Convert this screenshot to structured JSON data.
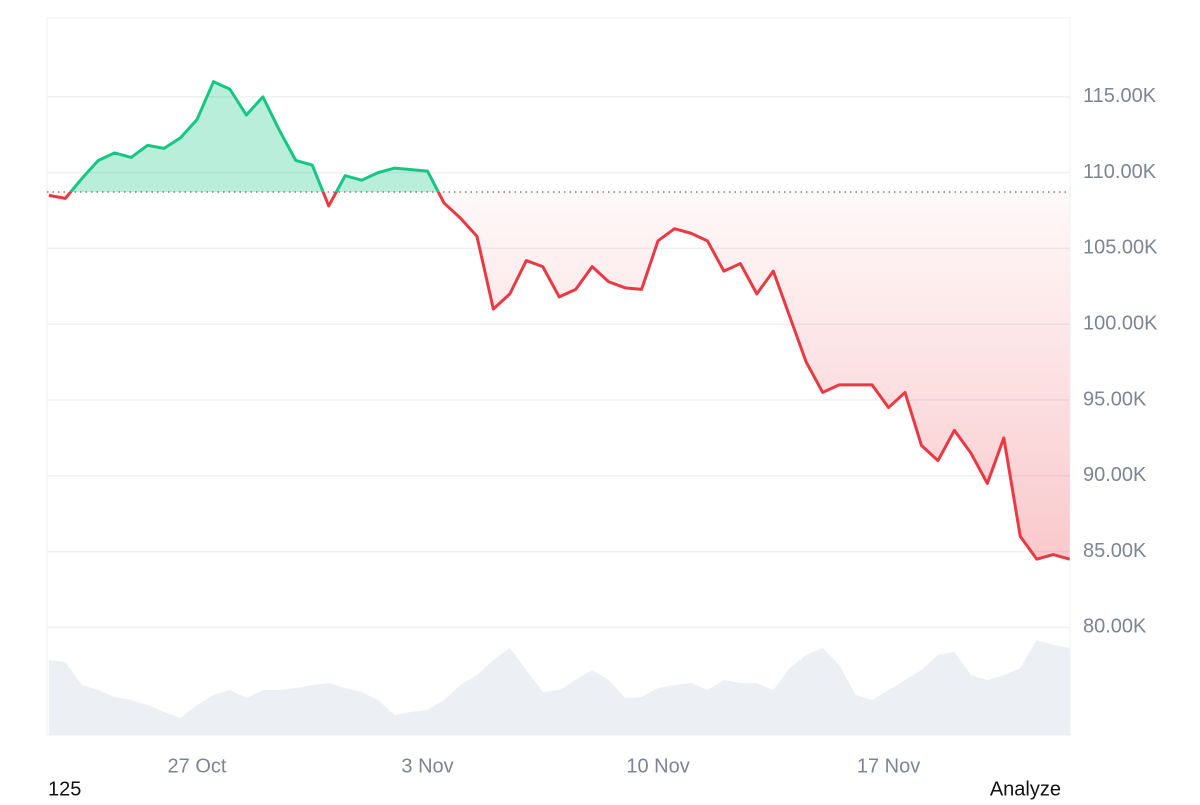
{
  "chart_data": {
    "type": "line",
    "x": [
      22.5,
      23,
      23.5,
      24,
      24.5,
      25,
      25.5,
      26,
      26.5,
      27,
      27.5,
      28,
      28.5,
      29,
      29.5,
      30,
      30.5,
      31,
      31.5,
      32,
      32.5,
      33,
      33.5,
      34,
      34.5,
      35,
      35.5,
      36,
      36.5,
      37,
      37.5,
      38,
      38.5,
      39,
      39.5,
      40,
      40.5,
      41,
      41.5,
      42,
      42.5,
      43,
      43.5,
      44,
      44.5,
      45,
      45.5,
      46,
      46.5,
      47,
      47.5,
      48,
      48.5,
      49,
      49.5,
      50,
      50.5,
      51,
      51.5,
      52,
      52.5,
      53,
      53.5
    ],
    "values": [
      108500,
      108300,
      109600,
      110800,
      111300,
      111000,
      111800,
      111600,
      112300,
      113500,
      116000,
      115500,
      113800,
      115000,
      112800,
      110800,
      110500,
      107800,
      109800,
      109500,
      110000,
      110300,
      110200,
      110100,
      108000,
      107000,
      105800,
      101000,
      102000,
      104200,
      103800,
      101800,
      102300,
      103800,
      102800,
      102400,
      102300,
      105500,
      106300,
      106000,
      105500,
      103500,
      104000,
      102000,
      103500,
      100500,
      97500,
      95500,
      96000,
      96000,
      96000,
      94500,
      95500,
      92000,
      91000,
      93000,
      91500,
      89500,
      92500,
      86000,
      84500,
      84800,
      84500
    ],
    "baseline": 108720,
    "colors": {
      "above": "#16c784",
      "below": "#ea3943"
    },
    "volume": [
      75,
      73,
      50,
      45,
      38,
      35,
      30,
      23,
      17,
      30,
      40,
      45,
      37,
      45,
      45,
      47,
      50,
      52,
      47,
      43,
      35,
      20,
      23,
      25,
      35,
      50,
      60,
      75,
      87,
      65,
      43,
      45,
      55,
      65,
      55,
      37,
      38,
      47,
      50,
      52,
      45,
      55,
      52,
      52,
      45,
      67,
      80,
      87,
      70,
      40,
      35,
      45,
      55,
      65,
      80,
      83,
      60,
      55,
      60,
      67,
      95,
      90,
      87
    ],
    "volume_ylim": [
      0,
      100
    ],
    "volume_color": "#eceff3",
    "xlim": [
      22.445,
      53.51
    ],
    "ylim": [
      72900,
      120200
    ],
    "yticks": [
      {
        "value": 80000,
        "label": "80.00K"
      },
      {
        "value": 85000,
        "label": "85.00K"
      },
      {
        "value": 90000,
        "label": "90.00K"
      },
      {
        "value": 95000,
        "label": "95.00K"
      },
      {
        "value": 100000,
        "label": "100.00K"
      },
      {
        "value": 105000,
        "label": "105.00K"
      },
      {
        "value": 110000,
        "label": "110.00K"
      },
      {
        "value": 115000,
        "label": "115.00K"
      }
    ],
    "xticks": [
      {
        "value": 27,
        "label": "27 Oct"
      },
      {
        "value": 34,
        "label": "3 Nov"
      },
      {
        "value": 41,
        "label": "10 Nov"
      },
      {
        "value": 48,
        "label": "17 Nov"
      }
    ],
    "grid": true,
    "footer_left": "125",
    "footer_right": "Analyze"
  }
}
